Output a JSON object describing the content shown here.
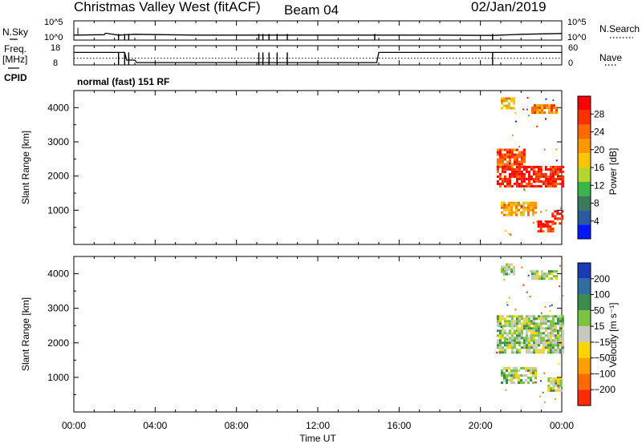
{
  "header": {
    "title": "Christmas Valley West (fitACF)",
    "beam": "Beam 04",
    "date": "02/Jan/2019"
  },
  "labels": {
    "nsky": "N.Sky",
    "freq": "Freq.",
    "mhz": "[MHz]",
    "cpid": "CPID",
    "nsearch": "N.Search",
    "nave": "Nave",
    "cpid_value": "normal (fast) 151 RF",
    "slant_range": "Slant Range [km]",
    "time_ut": "Time UT",
    "power_label": "Power [dB]",
    "velocity_label": "Velocity [m s⁻¹]"
  },
  "chart_data": [
    {
      "type": "line",
      "title": "Noise sky / noise search",
      "left_ticks": [
        "10^5",
        "10^0"
      ],
      "right_ticks": [
        "10^5",
        "10^0"
      ],
      "series": [
        {
          "name": "N.Sky",
          "style": "solid",
          "x": [
            0,
            1.5,
            1.55,
            2.2,
            3.0,
            6,
            9,
            12,
            15,
            18,
            20.6,
            21,
            22,
            23,
            24
          ],
          "y": [
            1.3,
            1.4,
            1.8,
            1.3,
            1.5,
            1.3,
            1.3,
            1.3,
            1.3,
            1.3,
            1.2,
            1.3,
            1.5,
            1.6,
            1.7
          ]
        }
      ],
      "dropouts": [
        2.2,
        2.5,
        2.7,
        9.1,
        9.3,
        9.6,
        10.0,
        10.5,
        14.8,
        20.6
      ]
    },
    {
      "type": "line",
      "title": "Frequency / Nave",
      "left_ticks": [
        "18",
        "8"
      ],
      "right_ticks": [
        "60",
        "0"
      ],
      "series": [
        {
          "name": "Freq.",
          "style": "solid",
          "x": [
            0,
            2.5,
            2.6,
            3.0,
            3.1,
            14.8,
            14.9,
            15.0,
            20.6,
            20.7,
            24
          ],
          "y": [
            14.5,
            14.5,
            10.5,
            10.5,
            9.2,
            9.2,
            9.2,
            14.5,
            14.5,
            14.5,
            14.5
          ]
        },
        {
          "name": "Nave",
          "style": "dotted",
          "x": [
            0,
            24
          ],
          "y": [
            0.35,
            0.35
          ]
        }
      ],
      "dropouts": [
        2.2,
        2.5,
        2.7,
        9.1,
        9.3,
        9.6,
        10.0,
        10.5,
        20.6
      ]
    },
    {
      "type": "heatmap",
      "title": "Power",
      "xlabel": "Time UT",
      "ylabel": "Slant Range [km]",
      "xlim": [
        0,
        24
      ],
      "ylim": [
        0,
        4500
      ],
      "x_ticks": [
        "00:00",
        "04:00",
        "08:00",
        "12:00",
        "16:00",
        "20:00",
        "00:00"
      ],
      "y_ticks": [
        1000,
        2000,
        3000,
        4000
      ],
      "colorbar": {
        "label": "Power [dB]",
        "ticks": [
          "28",
          "24",
          "20",
          "16",
          "12",
          "8",
          "4"
        ],
        "colors": [
          "#ff0000",
          "#ff3000",
          "#ff6a00",
          "#ff9800",
          "#ffc400",
          "#b5d62d",
          "#3bb54a",
          "#3c7a5c",
          "#2c5aa0",
          "#0018ff"
        ]
      },
      "echo_regions": [
        {
          "t0": 20.8,
          "t1": 22.2,
          "r0": 2200,
          "r1": 2800,
          "level": 2
        },
        {
          "t0": 20.8,
          "t1": 24.0,
          "r0": 1700,
          "r1": 2300,
          "level": 1
        },
        {
          "t0": 22.5,
          "t1": 23.8,
          "r0": 3850,
          "r1": 4100,
          "level": 3
        },
        {
          "t0": 21.0,
          "t1": 21.7,
          "r0": 4000,
          "r1": 4300,
          "level": 4
        },
        {
          "t0": 21.0,
          "t1": 22.7,
          "r0": 850,
          "r1": 1250,
          "level": 4
        },
        {
          "t0": 23.5,
          "t1": 24.0,
          "r0": 600,
          "r1": 1000,
          "level": 0
        },
        {
          "t0": 22.8,
          "t1": 23.6,
          "r0": 400,
          "r1": 700,
          "level": 1
        }
      ]
    },
    {
      "type": "heatmap",
      "title": "Velocity",
      "xlabel": "Time UT",
      "ylabel": "Slant Range [km]",
      "xlim": [
        0,
        24
      ],
      "ylim": [
        0,
        4500
      ],
      "x_ticks": [
        "00:00",
        "04:00",
        "08:00",
        "12:00",
        "16:00",
        "20:00",
        "00:00"
      ],
      "y_ticks": [
        1000,
        2000,
        3000,
        4000
      ],
      "colorbar": {
        "label": "Velocity [m s⁻¹]",
        "ticks": [
          "200",
          "100",
          "50",
          "15",
          "−15",
          "−50",
          "−100",
          "−200"
        ],
        "colors": [
          "#1a3db5",
          "#2f6ea0",
          "#3e8b4e",
          "#7bc342",
          "#c8c8c0",
          "#ffd400",
          "#ffa000",
          "#ff6a00",
          "#ff2a00"
        ]
      },
      "echo_regions": [
        {
          "t0": 20.8,
          "t1": 24.0,
          "r0": 1700,
          "r1": 2800,
          "level": 4
        },
        {
          "t0": 21.0,
          "t1": 22.7,
          "r0": 850,
          "r1": 1300,
          "level": 4
        },
        {
          "t0": 23.3,
          "t1": 24.0,
          "r0": 600,
          "r1": 1000,
          "level": 4
        },
        {
          "t0": 22.5,
          "t1": 23.8,
          "r0": 3850,
          "r1": 4100,
          "level": 4
        },
        {
          "t0": 21.0,
          "t1": 21.7,
          "r0": 4000,
          "r1": 4300,
          "level": 4
        }
      ]
    }
  ]
}
